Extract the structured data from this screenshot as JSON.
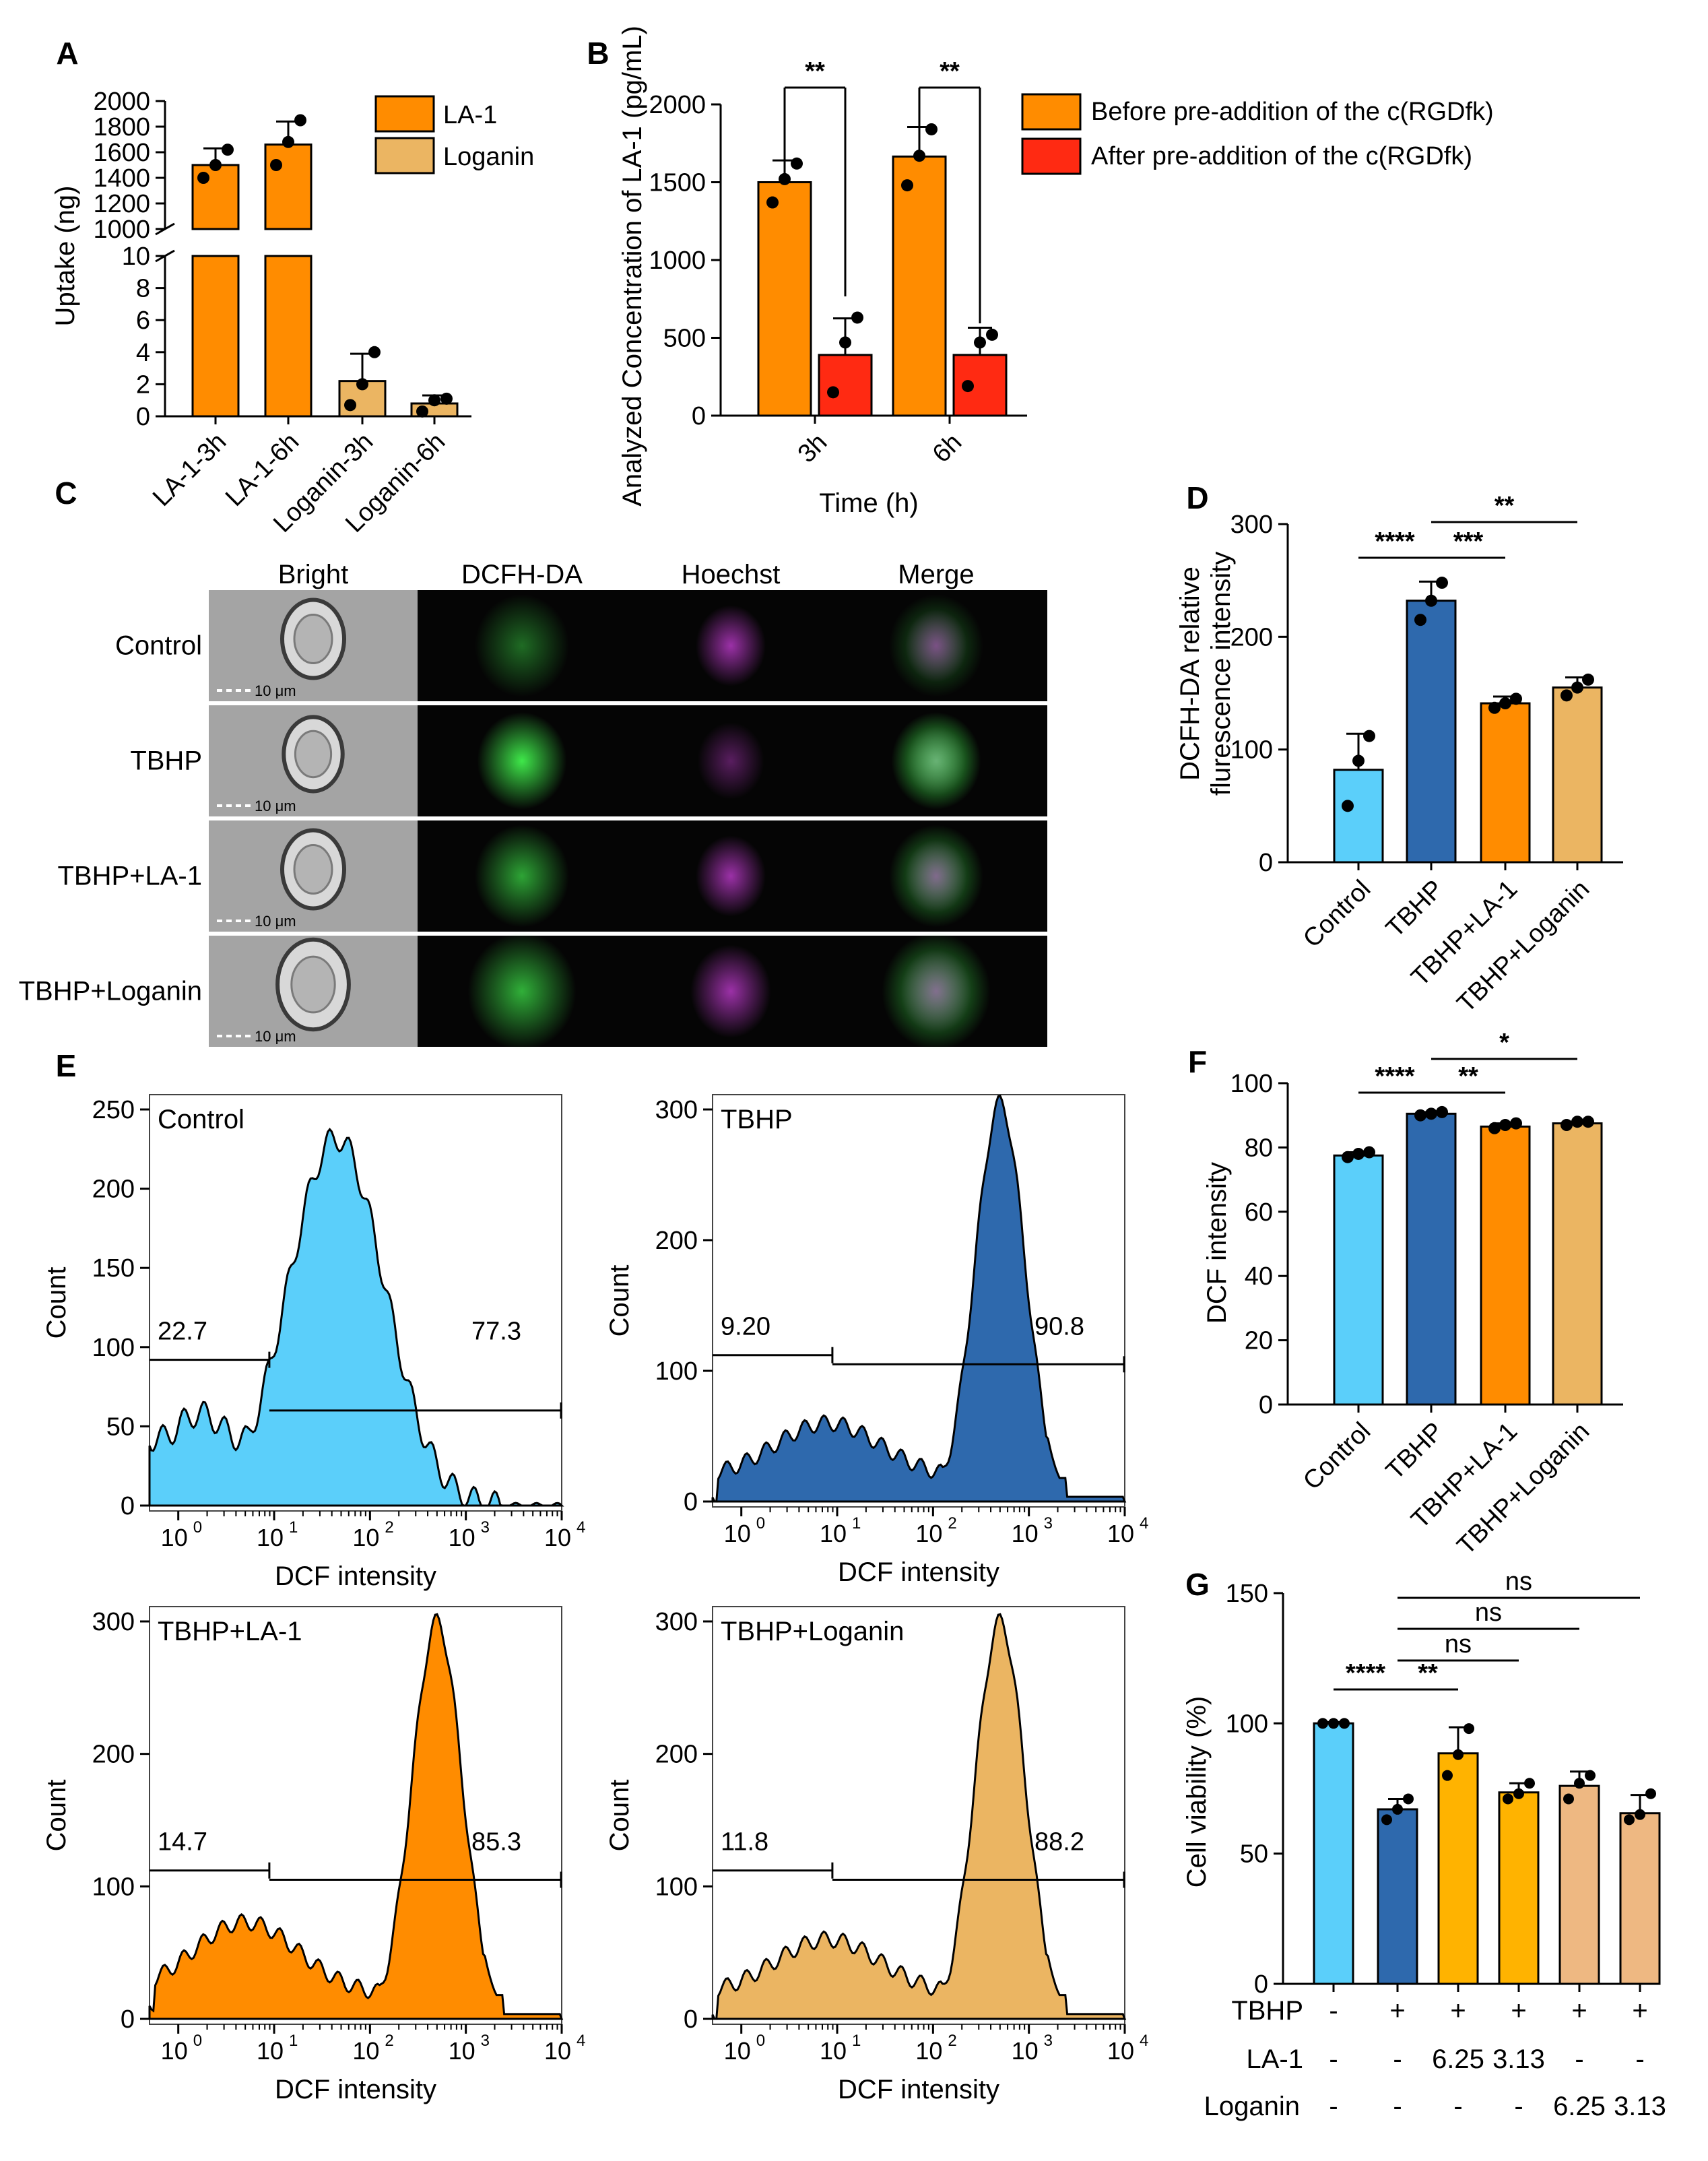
{
  "colors": {
    "orange": "#FF8C00",
    "tan": "#EBB562",
    "red": "#FF2A12",
    "lightblue": "#5BCFFA",
    "darkblue": "#2E69AD",
    "gold": "#FFB300",
    "peach": "#EEB882",
    "black": "#000000",
    "green": "#3FE84A",
    "magenta": "#C13CD0"
  },
  "panels": {
    "A": "A",
    "B": "B",
    "C": "C",
    "D": "D",
    "E": "E",
    "F": "F",
    "G": "G"
  },
  "chart_data": [
    {
      "id": "A",
      "type": "bar",
      "ylabel": "Uptake (ng)",
      "categories": [
        "LA-1-3h",
        "LA-1-6h",
        "Loganin-3h",
        "Loganin-6h"
      ],
      "values": [
        1500,
        1660,
        2.2,
        0.8
      ],
      "errors": [
        130,
        180,
        1.7,
        0.5
      ],
      "points": [
        [
          1400,
          1500,
          1620
        ],
        [
          1500,
          1680,
          1850
        ],
        [
          0.7,
          2.0,
          4.0
        ],
        [
          0.3,
          1.0,
          1.1
        ]
      ],
      "legend": [
        "LA-1",
        "Loganin"
      ],
      "yticks_upper": [
        "1000",
        "1200",
        "1400",
        "1600",
        "1800",
        "2000"
      ],
      "yticks_lower": [
        "0",
        "2",
        "4",
        "6",
        "8",
        "10"
      ],
      "broken_axis": [
        10,
        1000
      ]
    },
    {
      "id": "B",
      "type": "bar",
      "ylabel": "Analyzed Concentration of LA-1 (pg/mL)",
      "xlabel": "Time (h)",
      "categories": [
        "3h",
        "6h"
      ],
      "series": [
        {
          "name": "Before pre-addition of the c(RGDfk)",
          "values": [
            1500,
            1665
          ],
          "errors": [
            140,
            190
          ],
          "points": [
            [
              1370,
              1520,
              1620
            ],
            [
              1480,
              1670,
              1840
            ]
          ]
        },
        {
          "name": "After pre-addition of the c(RGDfk)",
          "values": [
            390,
            390
          ],
          "errors": [
            235,
            175
          ],
          "points": [
            [
              150,
              470,
              630
            ],
            [
              190,
              470,
              520
            ]
          ]
        }
      ],
      "ylim": [
        0,
        2000
      ],
      "yticks": [
        "0",
        "500",
        "1000",
        "1500",
        "2000"
      ],
      "sig": [
        "**",
        "**"
      ]
    },
    {
      "id": "D",
      "type": "bar",
      "ylabel_lines": [
        "DCFH-DA relative",
        "flurescence intensity"
      ],
      "categories": [
        "Control",
        "TBHP",
        "TBHP+LA-1",
        "TBHP+Loganin"
      ],
      "values": [
        82,
        232,
        141,
        155
      ],
      "errors": [
        32,
        17,
        6,
        9
      ],
      "points": [
        [
          50,
          90,
          112
        ],
        [
          215,
          232,
          248
        ],
        [
          137,
          141,
          145
        ],
        [
          148,
          155,
          162
        ]
      ],
      "ylim": [
        0,
        300
      ],
      "yticks": [
        "0",
        "100",
        "200",
        "300"
      ],
      "sig": [
        "****",
        "***",
        "**"
      ]
    },
    {
      "id": "F",
      "type": "bar",
      "ylabel": "DCF intensity",
      "categories": [
        "Control",
        "TBHP",
        "TBHP+LA-1",
        "TBHP+Loganin"
      ],
      "values": [
        77.5,
        90.5,
        86.5,
        87.5
      ],
      "errors": [
        1.0,
        0.5,
        1.0,
        0.5
      ],
      "points": [
        [
          77,
          78,
          78.5
        ],
        [
          90,
          90.5,
          91
        ],
        [
          86,
          87,
          87.5
        ],
        [
          87,
          88,
          88
        ]
      ],
      "ylim": [
        0,
        100
      ],
      "yticks": [
        "0",
        "20",
        "40",
        "60",
        "80",
        "100"
      ],
      "sig": [
        "****",
        "**",
        "*"
      ]
    },
    {
      "id": "G",
      "type": "bar",
      "ylabel": "Cell viability (%)",
      "values": [
        100,
        67,
        88.5,
        73.5,
        76,
        65.5
      ],
      "errors": [
        0.5,
        4,
        10,
        3.5,
        5.5,
        7
      ],
      "points": [
        [
          100,
          100,
          100
        ],
        [
          63,
          67,
          71
        ],
        [
          80,
          88,
          98
        ],
        [
          71,
          73,
          77
        ],
        [
          71,
          77,
          80
        ],
        [
          63,
          65,
          73
        ]
      ],
      "ylim": [
        0,
        150
      ],
      "yticks": [
        "0",
        "50",
        "100",
        "150"
      ],
      "rows": [
        {
          "label": "TBHP",
          "cells": [
            "-",
            "+",
            "+",
            "+",
            "+",
            "+"
          ]
        },
        {
          "label": "LA-1",
          "cells": [
            "-",
            "-",
            "6.25",
            "3.13",
            "-",
            "-"
          ]
        },
        {
          "label": "Loganin",
          "cells": [
            "-",
            "-",
            "-",
            "-",
            "6.25",
            "3.13"
          ]
        }
      ],
      "sig": [
        "****",
        "**",
        "ns",
        "ns",
        "ns"
      ]
    },
    {
      "id": "E",
      "type": "histogram",
      "xlabel": "DCF intensity",
      "ylabel": "Count",
      "xticks": [
        "10",
        "10",
        "10",
        "10",
        "10"
      ],
      "xtick_exponents": [
        "0",
        "1",
        "2",
        "3",
        "4"
      ],
      "histograms": [
        {
          "title": "Control",
          "left": "22.7",
          "right": "77.3",
          "yticks": [
            "0",
            "50",
            "100",
            "150",
            "200",
            "250"
          ],
          "peak": 232
        },
        {
          "title": "TBHP",
          "left": "9.20",
          "right": "90.8",
          "yticks": [
            "0",
            "100",
            "200",
            "300"
          ],
          "peak": 305
        },
        {
          "title": "TBHP+LA-1",
          "left": "14.7",
          "right": "85.3",
          "yticks": [
            "0",
            "100",
            "200",
            "300"
          ],
          "peak": 300
        },
        {
          "title": "TBHP+Loganin",
          "left": "11.8",
          "right": "88.2",
          "yticks": [
            "0",
            "100",
            "200",
            "300"
          ],
          "peak": 300
        }
      ]
    }
  ],
  "microscopy": {
    "columns": [
      "Bright",
      "DCFH-DA",
      "Hoechst",
      "Merge"
    ],
    "rows": [
      "Control",
      "TBHP",
      "TBHP+LA-1",
      "TBHP+Loganin"
    ],
    "scalebar": "10 μm"
  }
}
